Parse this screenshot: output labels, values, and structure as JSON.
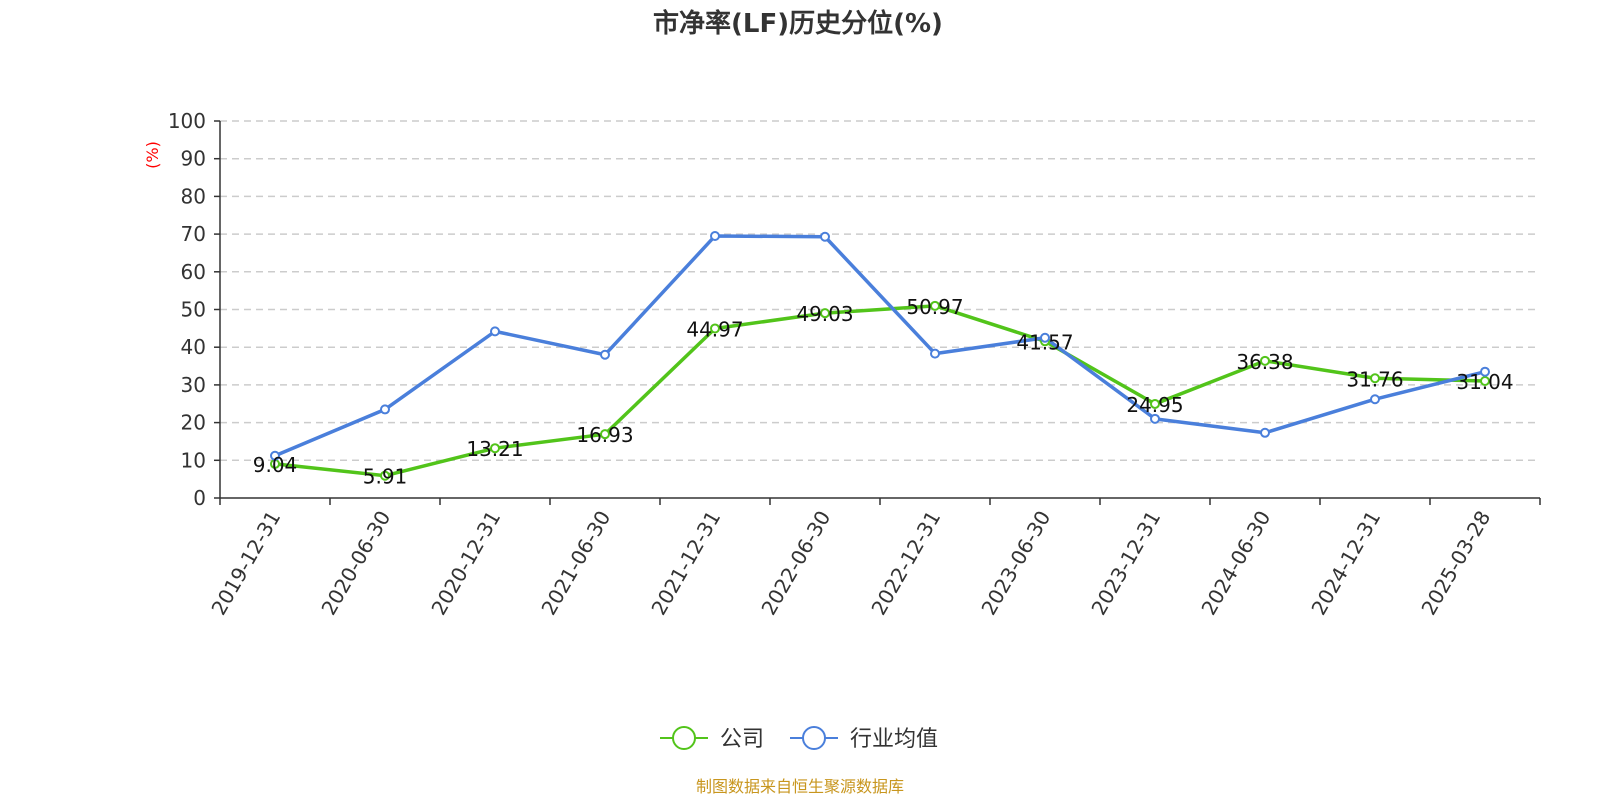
{
  "chart_data": {
    "type": "line",
    "title": "市净率(LF)历史分位(%)",
    "y_unit": "(%)",
    "ylim": [
      0,
      100
    ],
    "yticks": [
      "0",
      "10",
      "20",
      "30",
      "40",
      "50",
      "60",
      "70",
      "80",
      "90",
      "100"
    ],
    "grid": true,
    "legend_position": "bottom-center",
    "categories": [
      "2019-12-31",
      "2020-06-30",
      "2020-12-31",
      "2021-06-30",
      "2021-12-31",
      "2022-06-30",
      "2022-12-31",
      "2023-06-30",
      "2023-12-31",
      "2024-06-30",
      "2024-12-31",
      "2025-03-28"
    ],
    "series": [
      {
        "name": "公司",
        "color": "#52c41a",
        "values": [
          9.04,
          5.91,
          13.21,
          16.93,
          44.97,
          49.03,
          50.97,
          41.57,
          24.95,
          36.38,
          31.76,
          31.04
        ],
        "labels": [
          "9.04",
          "5.91",
          "13.21",
          "16.93",
          "44.97",
          "49.03",
          "50.97",
          "41.57",
          "24.95",
          "36.38",
          "31.76",
          "31.04"
        ]
      },
      {
        "name": "行业均值",
        "color": "#4a7fdb",
        "values": [
          11.2,
          23.5,
          44.2,
          38.0,
          69.5,
          69.3,
          38.3,
          42.5,
          21.0,
          17.3,
          26.2,
          33.5
        ]
      }
    ],
    "source": "制图数据来自恒生聚源数据库"
  }
}
